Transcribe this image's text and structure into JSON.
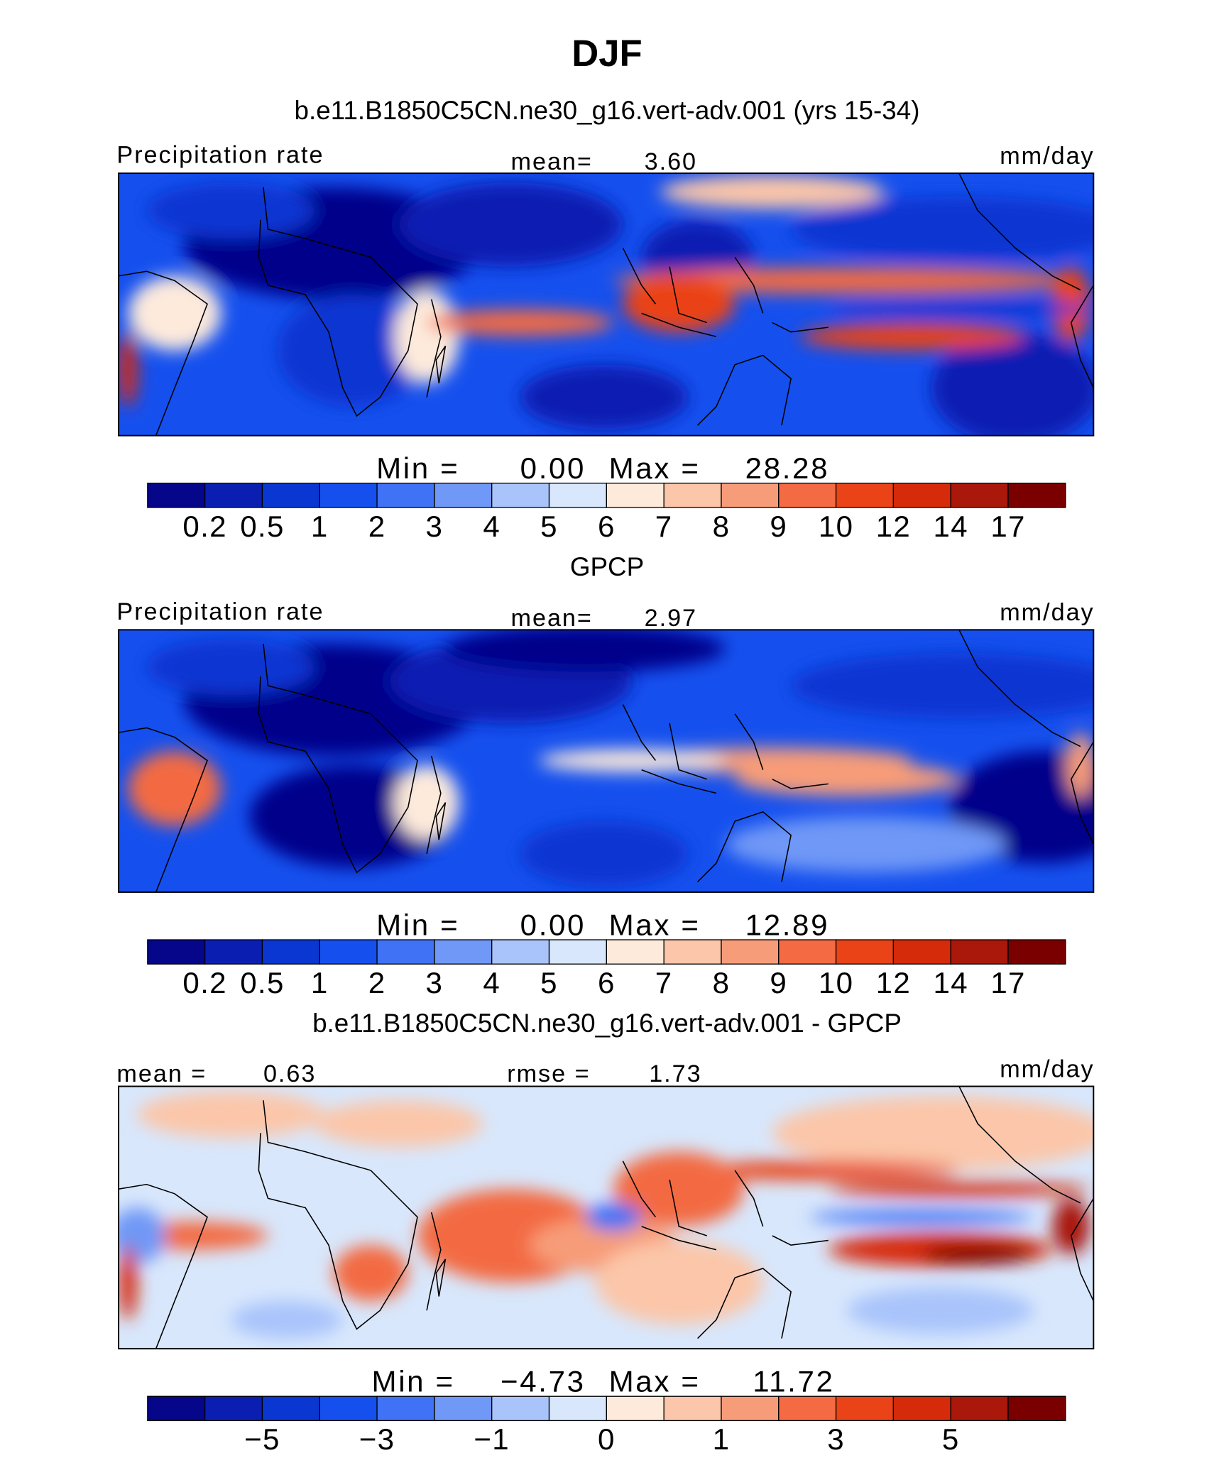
{
  "title": "DJF",
  "panels": [
    {
      "title": "b.e11.B1850C5CN.ne30_g16.vert-adv.001 (yrs 15-34)",
      "left_label": "Precipitation rate",
      "stat_label": "mean=",
      "stat_value": "3.60",
      "units": "mm/day",
      "min_label": "Min =",
      "min_value": "0.00",
      "max_label": "Max =",
      "max_value": "28.28",
      "colorbar": {
        "colors": [
          "#06068a",
          "#0a1fb2",
          "#0a36d2",
          "#1550ee",
          "#3f72f4",
          "#7098f6",
          "#a9c4fb",
          "#d8e7fc",
          "#fdeadb",
          "#fbc6a9",
          "#f79c78",
          "#f36a43",
          "#ea4318",
          "#d62b0a",
          "#a9180a",
          "#7a0000"
        ],
        "labels": [
          "0.2",
          "0.5",
          "1",
          "2",
          "3",
          "4",
          "5",
          "6",
          "7",
          "8",
          "9",
          "10",
          "12",
          "14",
          "17"
        ]
      }
    },
    {
      "title": "GPCP",
      "left_label": "Precipitation rate",
      "stat_label": "mean=",
      "stat_value": "2.97",
      "units": "mm/day",
      "min_label": "Min =",
      "min_value": "0.00",
      "max_label": "Max =",
      "max_value": "12.89",
      "colorbar": {
        "colors": [
          "#06068a",
          "#0a1fb2",
          "#0a36d2",
          "#1550ee",
          "#3f72f4",
          "#7098f6",
          "#a9c4fb",
          "#d8e7fc",
          "#fdeadb",
          "#fbc6a9",
          "#f79c78",
          "#f36a43",
          "#ea4318",
          "#d62b0a",
          "#a9180a",
          "#7a0000"
        ],
        "labels": [
          "0.2",
          "0.5",
          "1",
          "2",
          "3",
          "4",
          "5",
          "6",
          "7",
          "8",
          "9",
          "10",
          "12",
          "14",
          "17"
        ]
      }
    },
    {
      "title": "b.e11.B1850C5CN.ne30_g16.vert-adv.001 - GPCP",
      "left_label": "mean =",
      "left_value": "0.63",
      "stat_label": "rmse =",
      "stat_value": "1.73",
      "units": "mm/day",
      "min_label": "Min =",
      "min_value": "−4.73",
      "max_label": "Max =",
      "max_value": "11.72",
      "colorbar": {
        "colors": [
          "#06068a",
          "#0a1fb2",
          "#0a36d2",
          "#1550ee",
          "#3f72f4",
          "#7098f6",
          "#a9c4fb",
          "#d8e7fc",
          "#fdeadb",
          "#fbc6a9",
          "#f79c78",
          "#f36a43",
          "#ea4318",
          "#d62b0a",
          "#a9180a",
          "#7a0000"
        ],
        "labels": [
          null,
          "−5",
          null,
          "−3",
          null,
          "−1",
          null,
          "0",
          null,
          "1",
          null,
          "3",
          null,
          "5",
          null
        ]
      }
    }
  ]
}
